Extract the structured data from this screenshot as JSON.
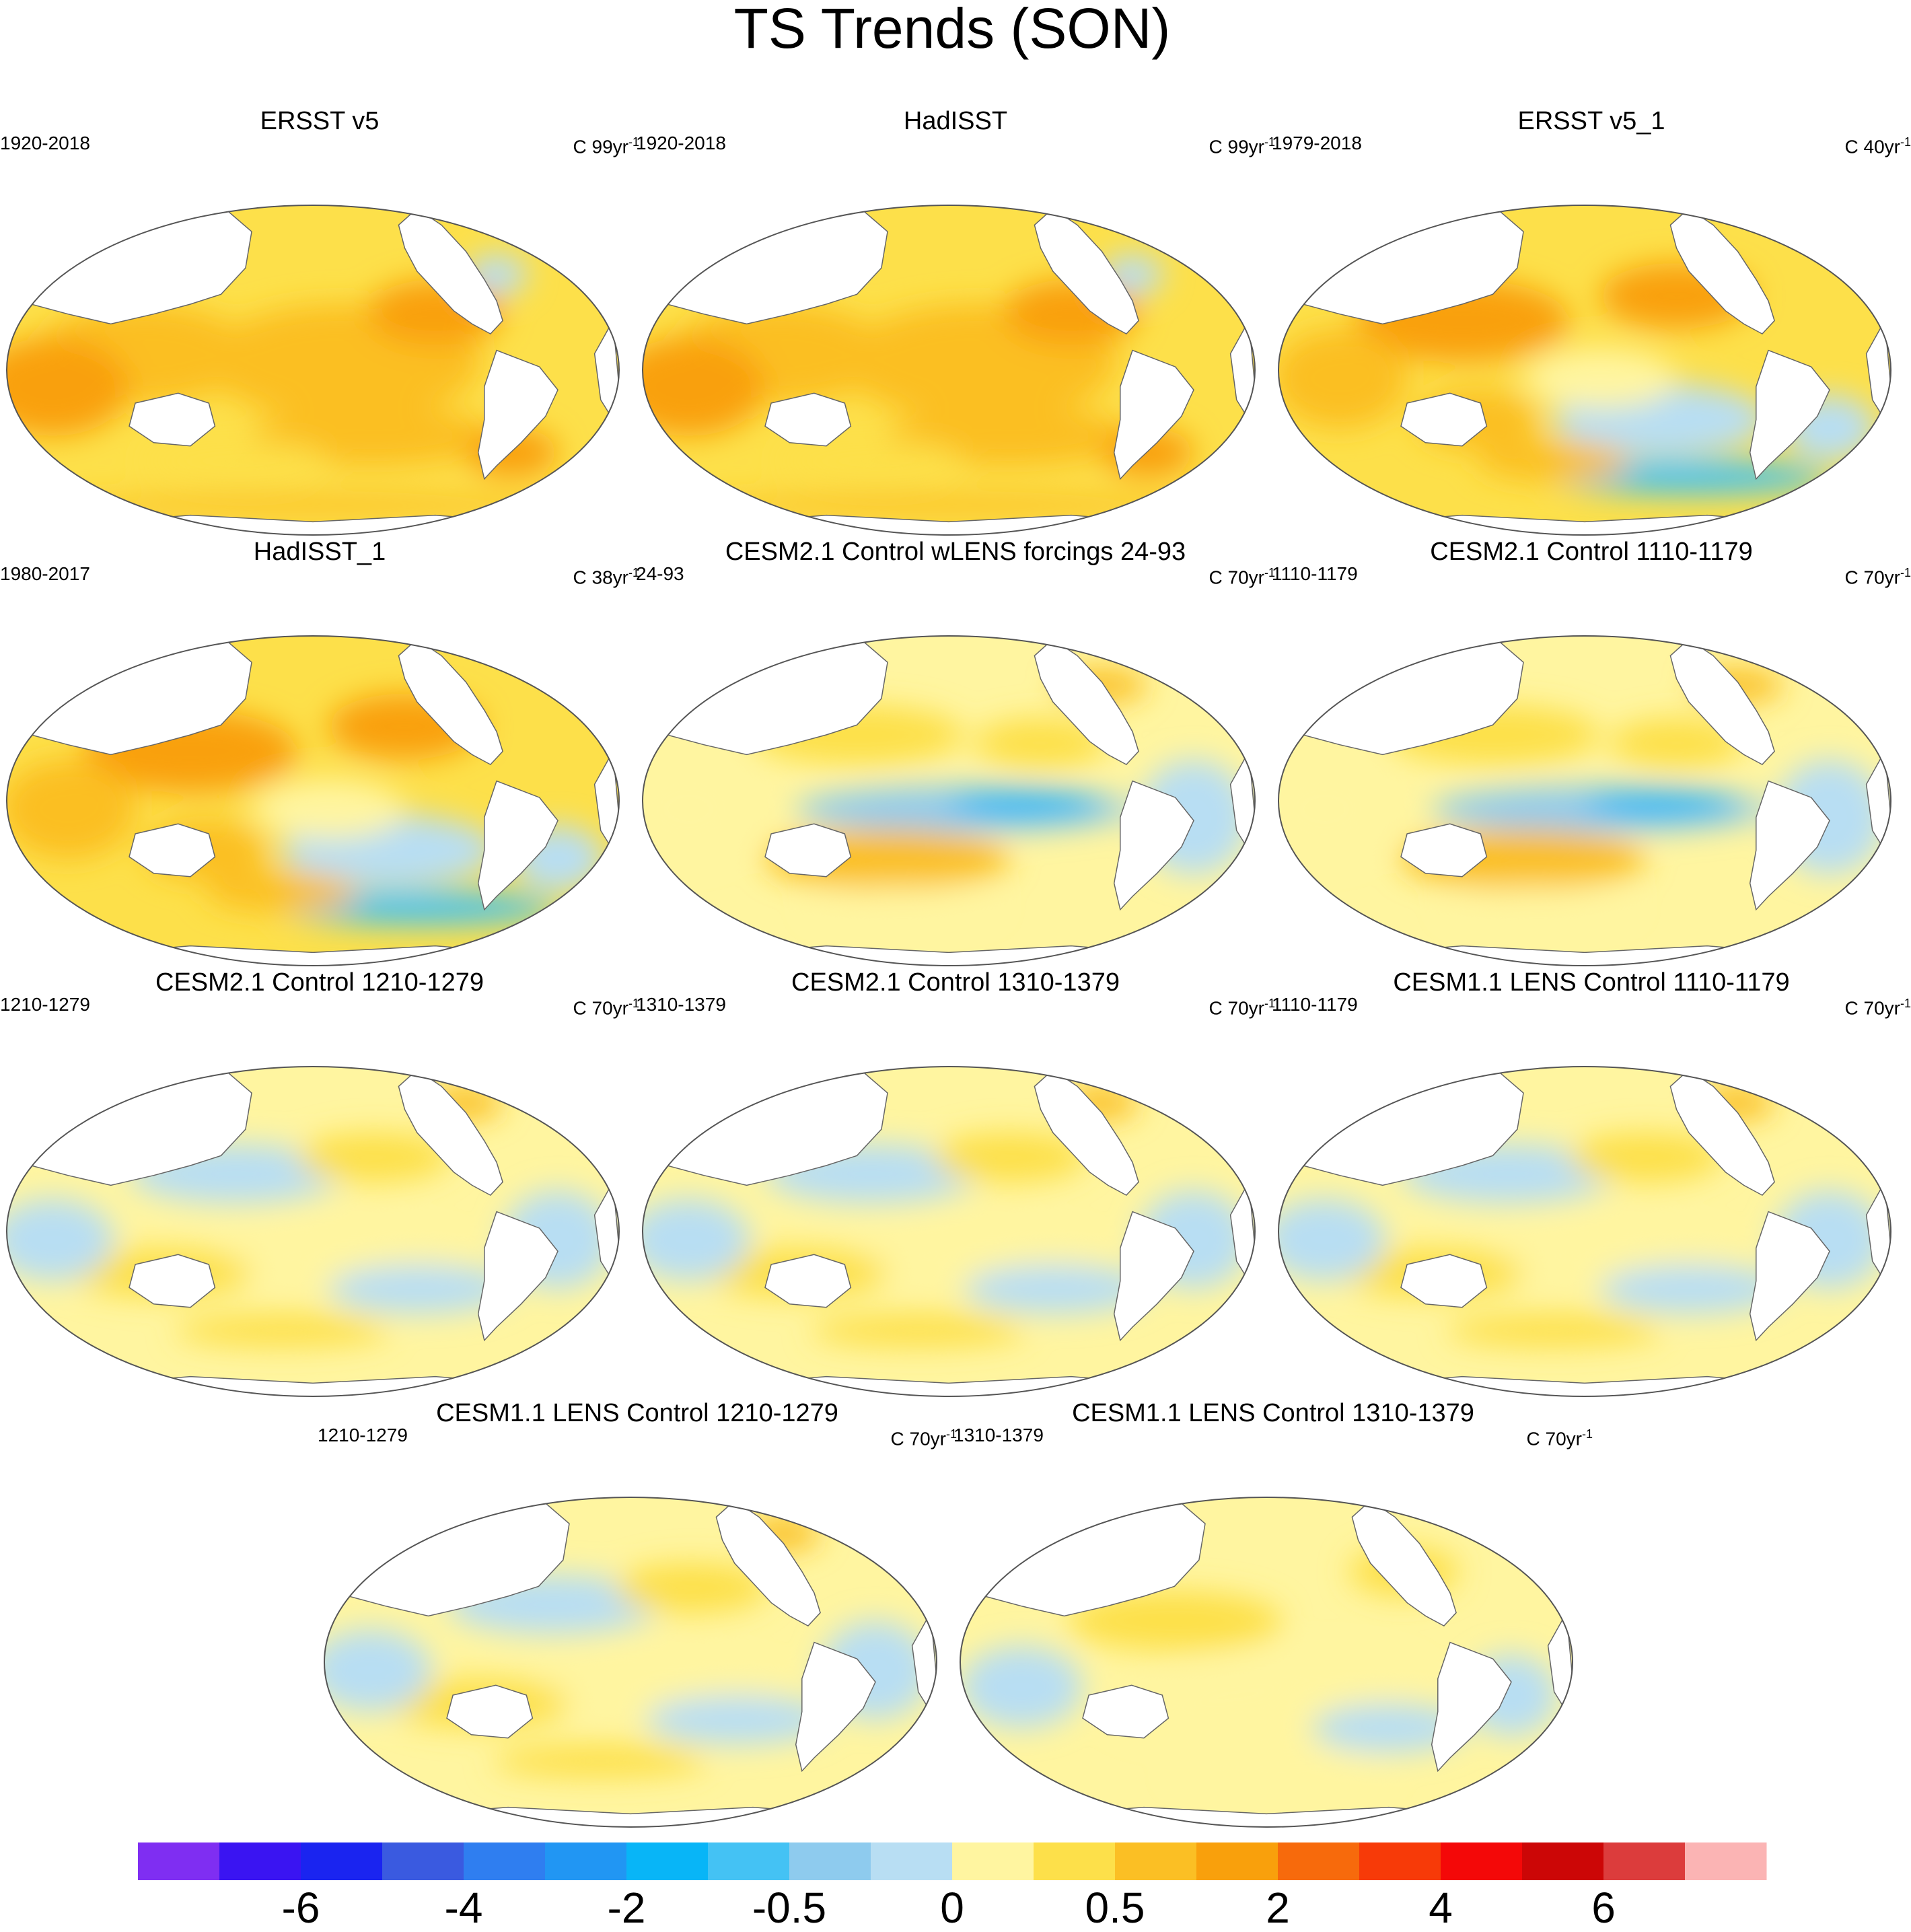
{
  "title": "TS Trends (SON)",
  "panels": [
    {
      "title": "ERSST v5",
      "left": "1920-2018",
      "unit": "C 99yr",
      "unit_exp": "-1",
      "pattern": "warm"
    },
    {
      "title": "HadISST",
      "left": "1920-2018",
      "unit": "C 99yr",
      "unit_exp": "-1",
      "pattern": "warm"
    },
    {
      "title": "ERSST v5_1",
      "left": "1979-2018",
      "unit": "C 40yr",
      "unit_exp": "-1",
      "pattern": "recent"
    },
    {
      "title": "HadISST_1",
      "left": "1980-2017",
      "unit": "C 38yr",
      "unit_exp": "-1",
      "pattern": "recent"
    },
    {
      "title": "CESM2.1 Control wLENS forcings 24-93",
      "left": "24-93",
      "unit": "C 70yr",
      "unit_exp": "-1",
      "pattern": "lanina"
    },
    {
      "title": "CESM2.1 Control 1110-1179",
      "left": "1110-1179",
      "unit": "C 70yr",
      "unit_exp": "-1",
      "pattern": "lanina"
    },
    {
      "title": "CESM2.1 Control 1210-1279",
      "left": "1210-1279",
      "unit": "C 70yr",
      "unit_exp": "-1",
      "pattern": "neutral"
    },
    {
      "title": "CESM2.1 Control 1310-1379",
      "left": "1310-1379",
      "unit": "C 70yr",
      "unit_exp": "-1",
      "pattern": "neutral"
    },
    {
      "title": "CESM1.1 LENS Control 1110-1179",
      "left": "1110-1179",
      "unit": "C 70yr",
      "unit_exp": "-1",
      "pattern": "neutral"
    },
    {
      "title": "CESM1.1 LENS Control 1210-1279",
      "left": "1210-1279",
      "unit": "C 70yr",
      "unit_exp": "-1",
      "pattern": "neutral"
    },
    {
      "title": "CESM1.1 LENS Control 1310-1379",
      "left": "1310-1379",
      "unit": "C 70yr",
      "unit_exp": "-1",
      "pattern": "mild"
    }
  ],
  "colorbar": {
    "colors": [
      "#7f2ef2",
      "#3a14f2",
      "#1a24f0",
      "#3a5ae0",
      "#2f7ef0",
      "#2196f3",
      "#08b5f7",
      "#44c2f4",
      "#8ecbee",
      "#b8def3",
      "#fff5a0",
      "#fde04a",
      "#fbbf24",
      "#f9a00c",
      "#f76a0c",
      "#f73a08",
      "#f40808",
      "#cc0606",
      "#dc3c3c",
      "#fbb4b4"
    ],
    "labels": [
      {
        "text": "-6",
        "boundary": 2
      },
      {
        "text": "-4",
        "boundary": 4
      },
      {
        "text": "-2",
        "boundary": 6
      },
      {
        "text": "-0.5",
        "boundary": 8
      },
      {
        "text": "0",
        "boundary": 10
      },
      {
        "text": "0.5",
        "boundary": 12
      },
      {
        "text": "2",
        "boundary": 14
      },
      {
        "text": "4",
        "boundary": 16
      },
      {
        "text": "6",
        "boundary": 18
      }
    ]
  }
}
